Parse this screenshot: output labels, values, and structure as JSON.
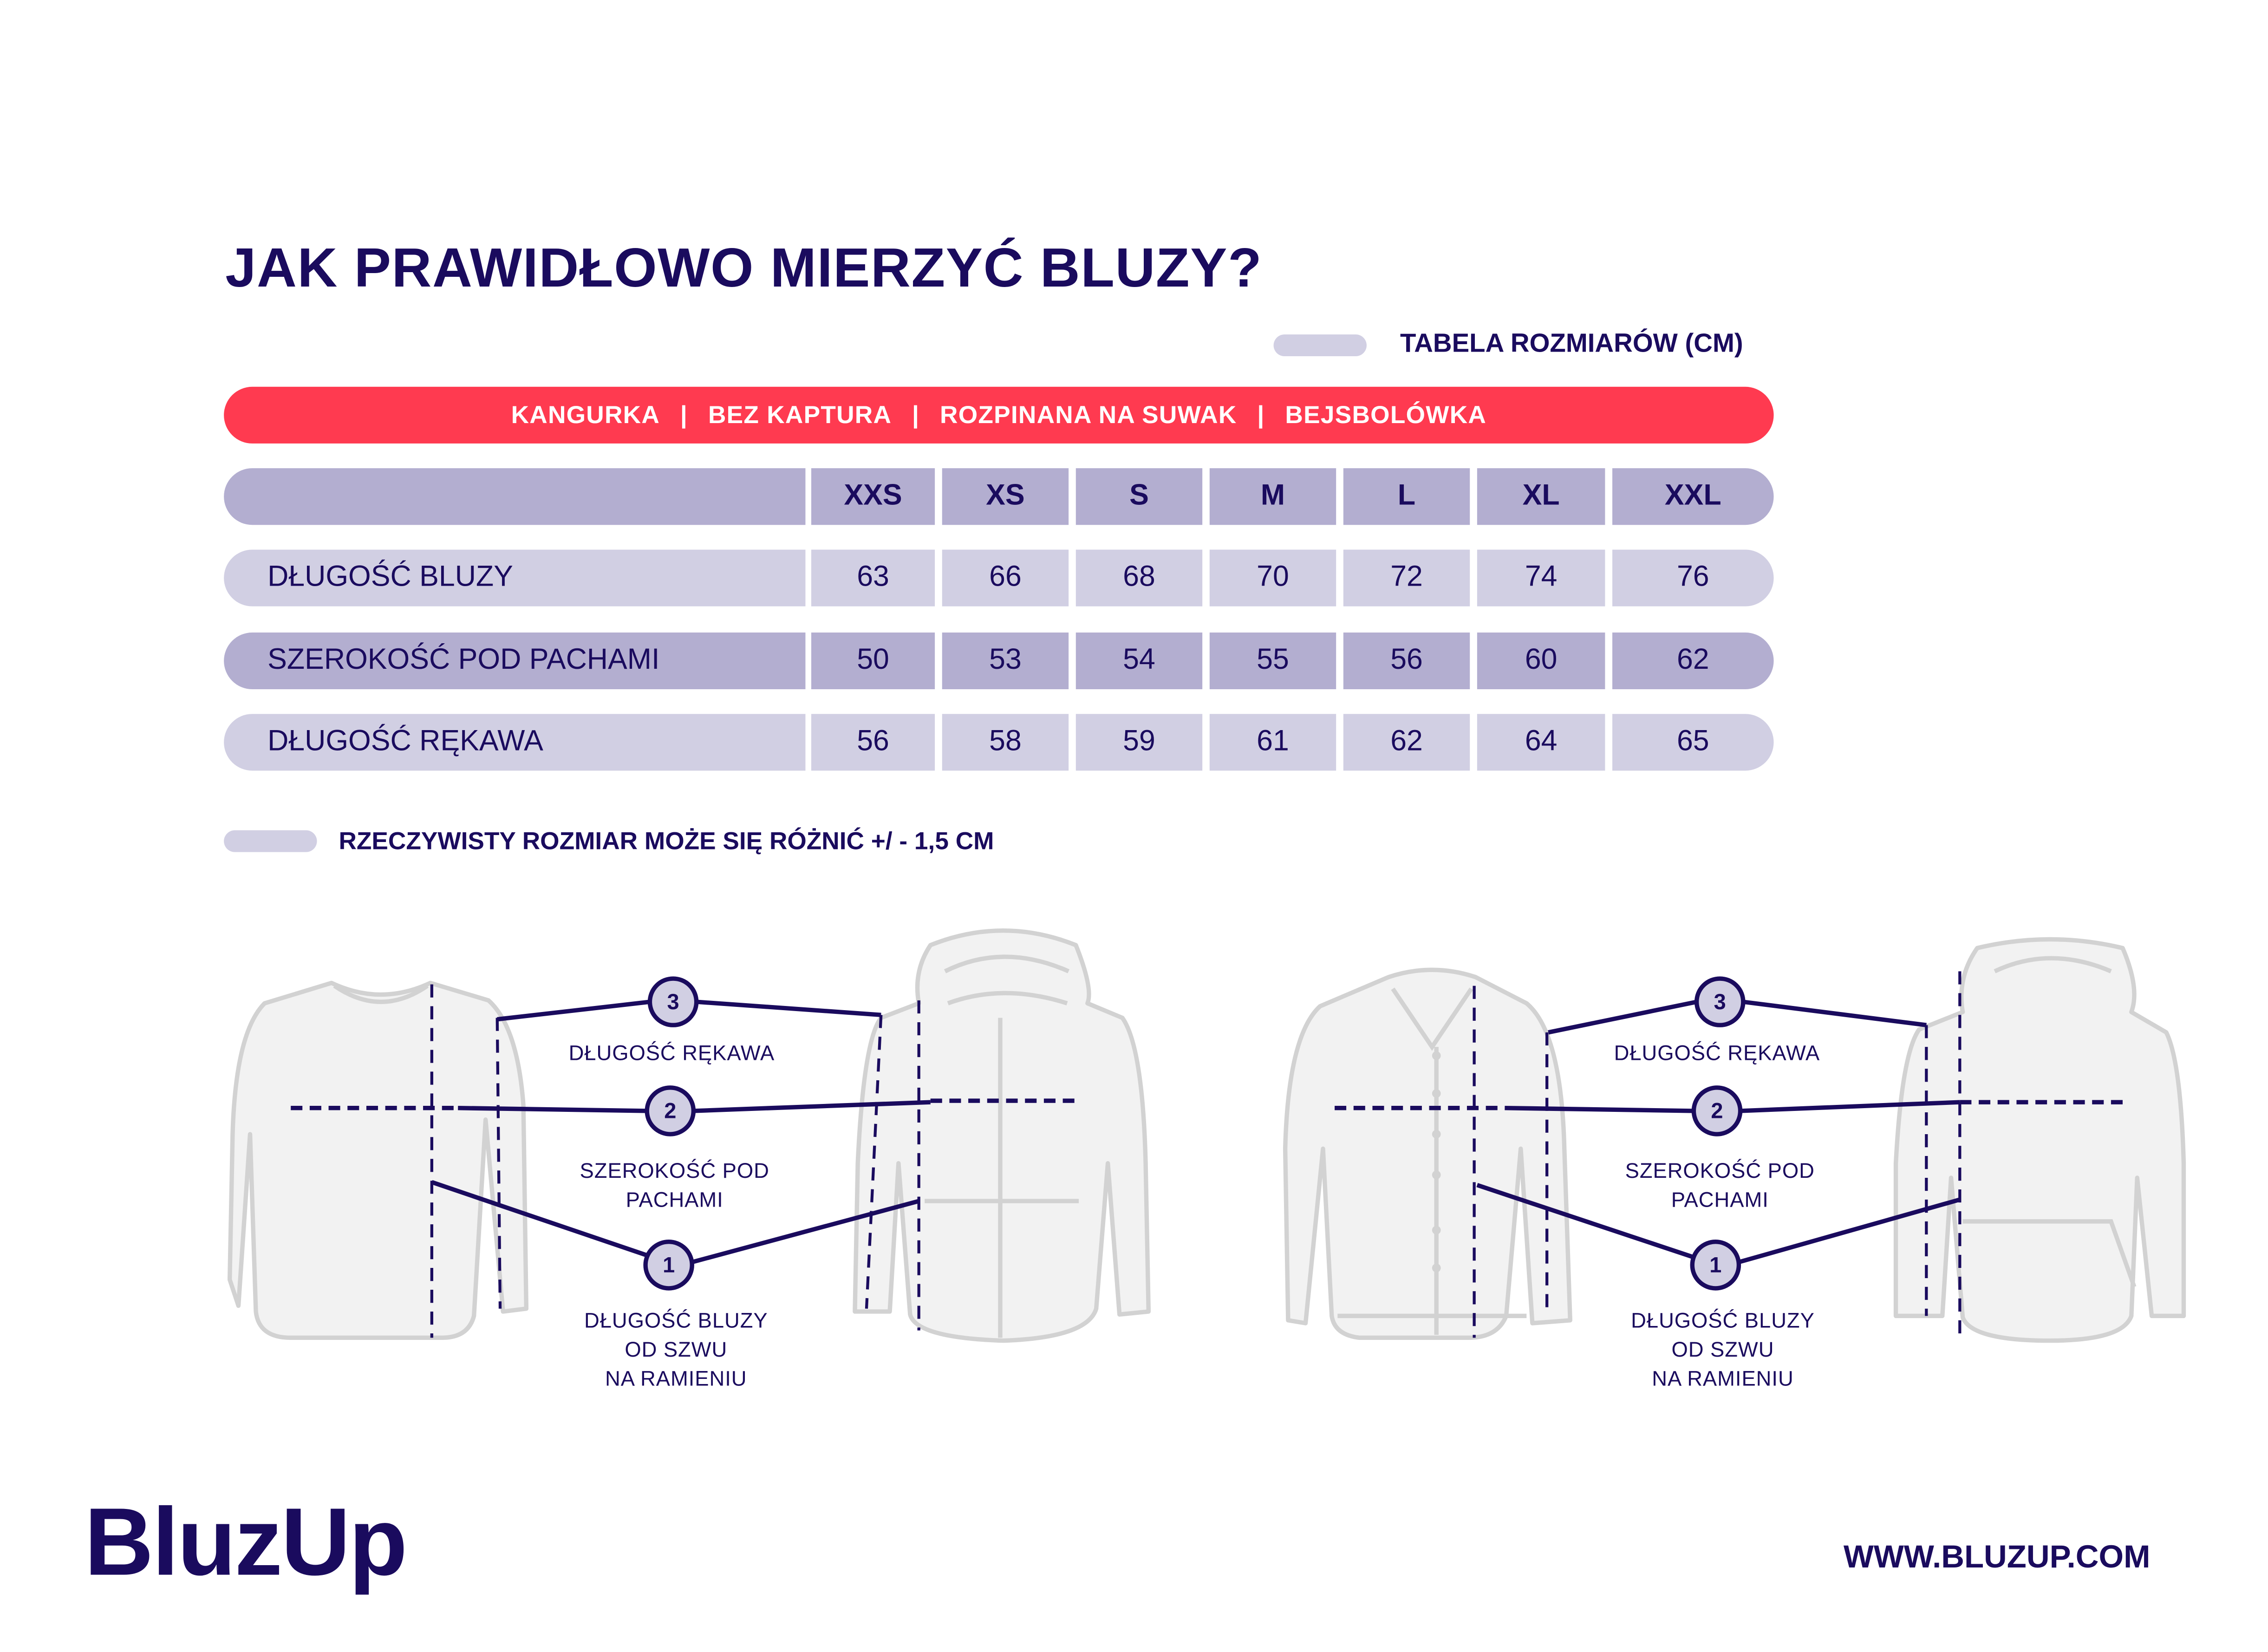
{
  "title": "JAK PRAWIDŁOWO MIERZYĆ BLUZY?",
  "legend": "TABELA ROZMIARÓW (CM)",
  "categories_bar": [
    "KANGURKA",
    "BEZ KAPTURA",
    "ROZPINANA NA SUWAK",
    "BEJSBOLÓWKA"
  ],
  "separator": "|",
  "table": {
    "sizes": [
      "XXS",
      "XS",
      "S",
      "M",
      "L",
      "XL",
      "XXL"
    ],
    "rows": [
      {
        "label": "DŁUGOŚĆ BLUZY",
        "values": [
          "63",
          "66",
          "68",
          "70",
          "72",
          "74",
          "76"
        ]
      },
      {
        "label": "SZEROKOŚĆ POD PACHAMI",
        "values": [
          "50",
          "53",
          "54",
          "55",
          "56",
          "60",
          "62"
        ]
      },
      {
        "label": "DŁUGOŚĆ RĘKAWA",
        "values": [
          "56",
          "58",
          "59",
          "61",
          "62",
          "64",
          "65"
        ]
      }
    ]
  },
  "note": "RZECZYWISTY ROZMIAR MOŻE SIĘ RÓŻNIĆ +/ - 1,5 CM",
  "diagram": {
    "markers": [
      "1",
      "2",
      "3"
    ],
    "sleeve_label": "DŁUGOŚĆ RĘKAWA",
    "width_label_1": "SZEROKOŚĆ POD",
    "width_label_2": "PACHAMI",
    "length_label_1": "DŁUGOŚĆ BLUZY",
    "length_label_2": "OD SZWU",
    "length_label_3": "NA RAMIENIU"
  },
  "logo": "BluzUp",
  "url": "WWW.BLUZUP.COM",
  "colors": {
    "accent": "#ff3a50",
    "text": "#1a0b5e",
    "row_dark": "#b3aed0",
    "row_light": "#d1cfe3",
    "garment": "#f2f2f2"
  }
}
